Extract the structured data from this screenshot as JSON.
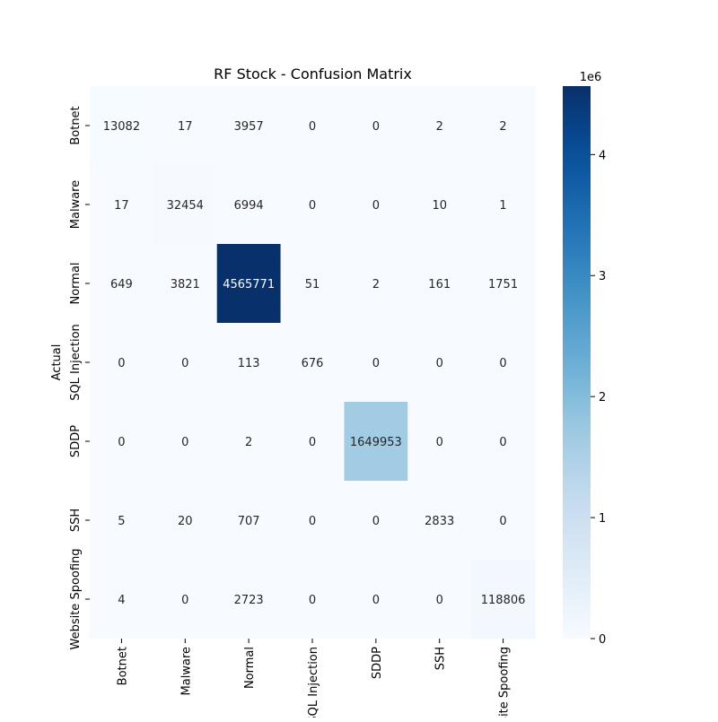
{
  "chart_data": {
    "type": "heatmap",
    "title": "RF Stock - Confusion Matrix",
    "ylabel": "Actual",
    "xlabel": "",
    "row_labels": [
      "Botnet",
      "Malware",
      "Normal",
      "SQL Injection",
      "SDDP",
      "SSH",
      "Website Spoofing"
    ],
    "col_labels": [
      "Botnet",
      "Malware",
      "Normal",
      "SQL Injection",
      "SDDP",
      "SSH",
      "Website Spoofing"
    ],
    "values": [
      [
        13082,
        17,
        3957,
        0,
        0,
        2,
        2
      ],
      [
        17,
        32454,
        6994,
        0,
        0,
        10,
        1
      ],
      [
        649,
        3821,
        4565771,
        51,
        2,
        161,
        1751
      ],
      [
        0,
        0,
        113,
        676,
        0,
        0,
        0
      ],
      [
        0,
        0,
        2,
        0,
        1649953,
        0,
        0
      ],
      [
        5,
        20,
        707,
        0,
        0,
        2833,
        0
      ],
      [
        4,
        0,
        2723,
        0,
        0,
        0,
        118806
      ]
    ],
    "colorbar": {
      "colormap": "Blues",
      "vmin": 0,
      "vmax": 4565771,
      "ticks": [
        0,
        1,
        2,
        3,
        4
      ],
      "tick_labels": [
        "0",
        "1",
        "2",
        "3",
        "4"
      ],
      "offset_label": "1e6"
    }
  }
}
